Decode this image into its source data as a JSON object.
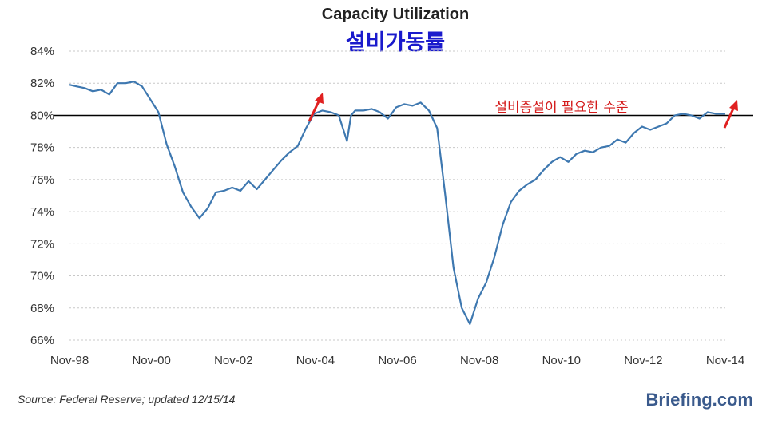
{
  "chart_data": {
    "type": "line",
    "title": "Capacity Utilization",
    "subtitle": "설비가동률",
    "annotation": "설비증설이 필요한 수준",
    "source": "Source: Federal Reserve; updated 12/15/14",
    "brand": "Briefing.com",
    "xlabel": "",
    "ylabel": "",
    "ylim": [
      66,
      84
    ],
    "y_ticks": [
      "84%",
      "82%",
      "80%",
      "78%",
      "76%",
      "74%",
      "72%",
      "70%",
      "68%",
      "66%"
    ],
    "y_tick_values": [
      84,
      82,
      80,
      78,
      76,
      74,
      72,
      70,
      68,
      66
    ],
    "x_ticks": [
      "Nov-98",
      "Nov-00",
      "Nov-02",
      "Nov-04",
      "Nov-06",
      "Nov-08",
      "Nov-10",
      "Nov-12",
      "Nov-14"
    ],
    "x_tick_values": [
      1998.83,
      2000.83,
      2002.83,
      2004.83,
      2006.83,
      2008.83,
      2010.83,
      2012.83,
      2014.83
    ],
    "reference_line": 80,
    "grid": true,
    "series": [
      {
        "name": "Capacity Utilization",
        "color": "#3e78b0",
        "x": [
          1998.83,
          1999.0,
          1999.2,
          1999.4,
          1999.6,
          1999.8,
          2000.0,
          2000.2,
          2000.4,
          2000.6,
          2000.8,
          2001.0,
          2001.2,
          2001.4,
          2001.6,
          2001.8,
          2002.0,
          2002.2,
          2002.4,
          2002.6,
          2002.8,
          2003.0,
          2003.2,
          2003.4,
          2003.6,
          2003.8,
          2004.0,
          2004.2,
          2004.4,
          2004.6,
          2004.8,
          2005.0,
          2005.2,
          2005.4,
          2005.6,
          2005.7,
          2005.8,
          2006.0,
          2006.2,
          2006.4,
          2006.6,
          2006.8,
          2007.0,
          2007.2,
          2007.4,
          2007.6,
          2007.8,
          2008.0,
          2008.2,
          2008.4,
          2008.6,
          2008.8,
          2009.0,
          2009.2,
          2009.4,
          2009.6,
          2009.8,
          2010.0,
          2010.2,
          2010.4,
          2010.6,
          2010.8,
          2011.0,
          2011.2,
          2011.4,
          2011.6,
          2011.8,
          2012.0,
          2012.2,
          2012.4,
          2012.6,
          2012.8,
          2013.0,
          2013.2,
          2013.4,
          2013.6,
          2013.8,
          2014.0,
          2014.2,
          2014.4,
          2014.6,
          2014.83
        ],
        "values": [
          81.9,
          81.8,
          81.7,
          81.5,
          81.6,
          81.3,
          82.0,
          82.0,
          82.1,
          81.8,
          81.0,
          80.2,
          78.2,
          76.8,
          75.2,
          74.3,
          73.6,
          74.2,
          75.2,
          75.3,
          75.5,
          75.3,
          75.9,
          75.4,
          76.0,
          76.6,
          77.2,
          77.7,
          78.1,
          79.2,
          80.1,
          80.3,
          80.2,
          80.0,
          78.4,
          80.0,
          80.3,
          80.3,
          80.4,
          80.2,
          79.8,
          80.5,
          80.7,
          80.6,
          80.8,
          80.3,
          79.2,
          75.0,
          70.5,
          68.0,
          67.0,
          68.6,
          69.6,
          71.2,
          73.2,
          74.6,
          75.3,
          75.7,
          76.0,
          76.6,
          77.1,
          77.4,
          77.1,
          77.6,
          77.8,
          77.7,
          78.0,
          78.1,
          78.5,
          78.3,
          78.9,
          79.3,
          79.1,
          79.3,
          79.5,
          80.0,
          80.1,
          80.0,
          79.8,
          80.2,
          80.1,
          80.1
        ]
      }
    ]
  }
}
